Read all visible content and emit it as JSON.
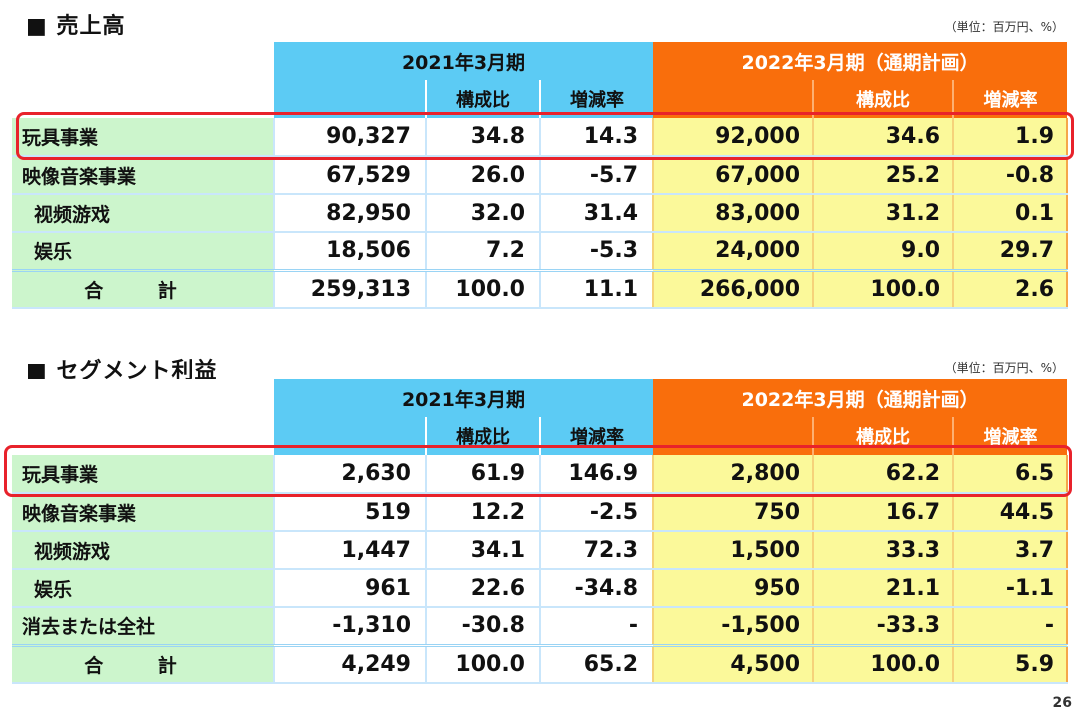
{
  "sales": {
    "title": "■ 売上高",
    "unit": "（単位：百万円、%）",
    "period_2021": "2021年3月期",
    "period_2022": "2022年3月期（通期計画）",
    "col_ratio": "構成比",
    "col_change": "増減率",
    "rows": [
      {
        "label": "玩具事業",
        "v2021": "90,327",
        "r2021": "34.8",
        "c2021": "14.3",
        "v2022": "92,000",
        "r2022": "34.6",
        "c2022": "1.9"
      },
      {
        "label": "映像音楽事業",
        "v2021": "67,529",
        "r2021": "26.0",
        "c2021": "-5.7",
        "v2022": "67,000",
        "r2022": "25.2",
        "c2022": "-0.8"
      },
      {
        "label": "视频游戏",
        "v2021": "82,950",
        "r2021": "32.0",
        "c2021": "31.4",
        "v2022": "83,000",
        "r2022": "31.2",
        "c2022": "0.1"
      },
      {
        "label": "娱乐",
        "v2021": "18,506",
        "r2021": "7.2",
        "c2021": "-5.3",
        "v2022": "24,000",
        "r2022": "9.0",
        "c2022": "29.7"
      },
      {
        "label": "合 計",
        "v2021": "259,313",
        "r2021": "100.0",
        "c2021": "11.1",
        "v2022": "266,000",
        "r2022": "100.0",
        "c2022": "2.6"
      }
    ]
  },
  "segment": {
    "title": "■ セグメント利益",
    "unit": "（単位：百万円、%）",
    "period_2021": "2021年3月期",
    "period_2022": "2022年3月期（通期計画）",
    "col_ratio": "構成比",
    "col_change": "増減率",
    "rows": [
      {
        "label": "玩具事業",
        "v2021": "2,630",
        "r2021": "61.9",
        "c2021": "146.9",
        "v2022": "2,800",
        "r2022": "62.2",
        "c2022": "6.5"
      },
      {
        "label": "映像音楽事業",
        "v2021": "519",
        "r2021": "12.2",
        "c2021": "-2.5",
        "v2022": "750",
        "r2022": "16.7",
        "c2022": "44.5"
      },
      {
        "label": "视频游戏",
        "v2021": "1,447",
        "r2021": "34.1",
        "c2021": "72.3",
        "v2022": "1,500",
        "r2022": "33.3",
        "c2022": "3.7"
      },
      {
        "label": "娱乐",
        "v2021": "961",
        "r2021": "22.6",
        "c2021": "-34.8",
        "v2022": "950",
        "r2022": "21.1",
        "c2022": "-1.1"
      },
      {
        "label": "消去または全社",
        "v2021": "-1,310",
        "r2021": "-30.8",
        "c2021": "-",
        "v2022": "-1,500",
        "r2022": "-33.3",
        "c2022": "-"
      },
      {
        "label": "合 計",
        "v2021": "4,249",
        "r2021": "100.0",
        "c2021": "65.2",
        "v2022": "4,500",
        "r2022": "100.0",
        "c2022": "5.9"
      }
    ]
  },
  "page_number": "26",
  "colors": {
    "header_2021": "#5ccbf4",
    "header_2022": "#f96e0c",
    "label_bg": "#ccf5cc",
    "value_2022_bg": "#fbf99a",
    "highlight": "#e8222b"
  }
}
